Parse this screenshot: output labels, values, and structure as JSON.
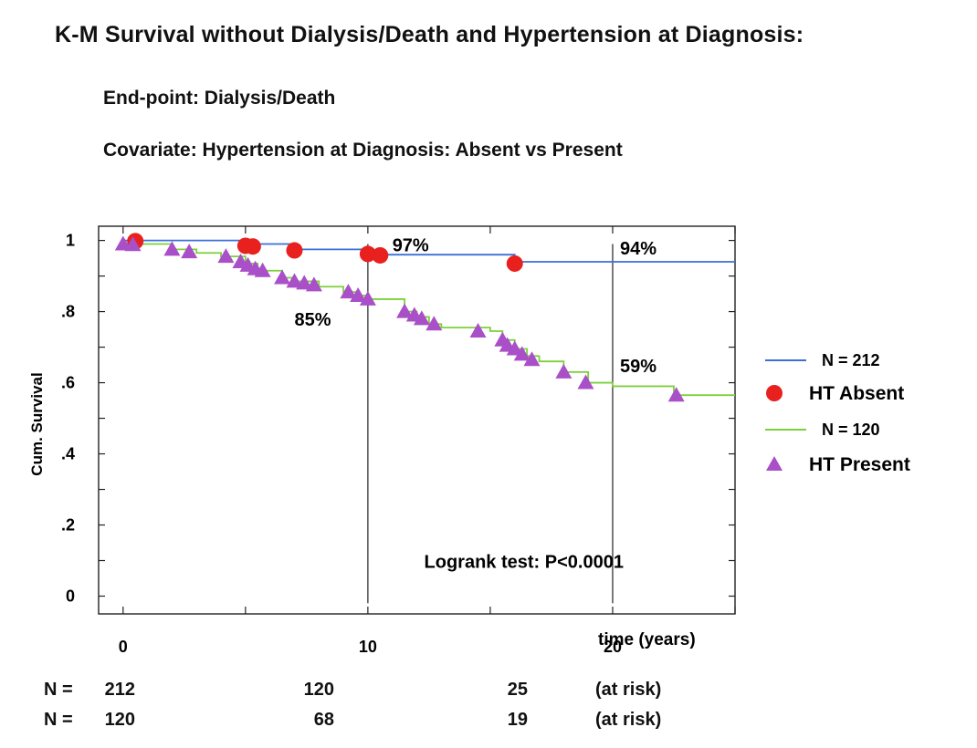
{
  "header": {
    "title": "K-M Survival without Dialysis/Death and Hypertension at Diagnosis:",
    "endpoint": "End-point: Dialysis/Death",
    "covariate": "Covariate: Hypertension at Diagnosis: Absent vs Present"
  },
  "chart_data": {
    "type": "line",
    "ylabel": "Cum. Survival",
    "xlabel": "time (years)",
    "xlim": [
      -1,
      25
    ],
    "ylim": [
      -0.05,
      1.04
    ],
    "x_ticks": [
      "0",
      "10",
      "20"
    ],
    "y_ticks": [
      "1",
      ".8",
      ".6",
      ".4",
      ".2",
      "0"
    ],
    "y_tick_values": [
      1,
      0.8,
      0.6,
      0.4,
      0.2,
      0
    ],
    "x_tick_values": [
      0,
      10,
      20
    ],
    "reference_lines_x": [
      10,
      20
    ],
    "series": [
      {
        "name": "N = 212",
        "marker_label": "HT Absent",
        "line_color": "#3b6fd8",
        "marker_color": "#e8201e",
        "marker": "circle",
        "steps": [
          [
            0,
            1.0
          ],
          [
            5,
            0.99
          ],
          [
            6.8,
            0.975
          ],
          [
            10,
            0.965
          ],
          [
            10.5,
            0.96
          ],
          [
            16,
            0.945
          ],
          [
            16.1,
            0.94
          ],
          [
            25,
            0.94
          ]
        ],
        "censored": [
          [
            0.5,
            0.998
          ],
          [
            5.0,
            0.985
          ],
          [
            5.3,
            0.983
          ],
          [
            7.0,
            0.972
          ],
          [
            10.0,
            0.962
          ],
          [
            10.5,
            0.958
          ],
          [
            16.0,
            0.935
          ]
        ]
      },
      {
        "name": "N = 120",
        "marker_label": "HT Present",
        "line_color": "#7cd03c",
        "marker_color": "#a94fc8",
        "marker": "triangle",
        "steps": [
          [
            0,
            0.99
          ],
          [
            2,
            0.975
          ],
          [
            3,
            0.965
          ],
          [
            4,
            0.955
          ],
          [
            5,
            0.935
          ],
          [
            5.5,
            0.915
          ],
          [
            6.5,
            0.895
          ],
          [
            7,
            0.885
          ],
          [
            8,
            0.87
          ],
          [
            9,
            0.855
          ],
          [
            9.5,
            0.845
          ],
          [
            10,
            0.835
          ],
          [
            11.5,
            0.8
          ],
          [
            12,
            0.785
          ],
          [
            12.5,
            0.765
          ],
          [
            13,
            0.755
          ],
          [
            15,
            0.745
          ],
          [
            15.5,
            0.72
          ],
          [
            16,
            0.695
          ],
          [
            16.5,
            0.675
          ],
          [
            17,
            0.66
          ],
          [
            18,
            0.63
          ],
          [
            19,
            0.6
          ],
          [
            20,
            0.59
          ],
          [
            22,
            0.59
          ],
          [
            22.5,
            0.565
          ],
          [
            25,
            0.565
          ]
        ],
        "censored": [
          [
            0,
            0.99
          ],
          [
            0.4,
            0.988
          ],
          [
            2,
            0.975
          ],
          [
            2.7,
            0.968
          ],
          [
            4.2,
            0.955
          ],
          [
            4.8,
            0.94
          ],
          [
            5.1,
            0.93
          ],
          [
            5.4,
            0.92
          ],
          [
            5.7,
            0.915
          ],
          [
            6.5,
            0.895
          ],
          [
            7.0,
            0.885
          ],
          [
            7.4,
            0.88
          ],
          [
            7.8,
            0.875
          ],
          [
            9.2,
            0.855
          ],
          [
            9.6,
            0.845
          ],
          [
            10.0,
            0.835
          ],
          [
            11.5,
            0.8
          ],
          [
            11.9,
            0.79
          ],
          [
            12.2,
            0.78
          ],
          [
            12.7,
            0.765
          ],
          [
            14.5,
            0.745
          ],
          [
            15.5,
            0.72
          ],
          [
            15.7,
            0.705
          ],
          [
            16.0,
            0.695
          ],
          [
            16.3,
            0.68
          ],
          [
            16.7,
            0.665
          ],
          [
            18.0,
            0.63
          ],
          [
            18.9,
            0.6
          ],
          [
            22.6,
            0.565
          ]
        ]
      }
    ],
    "annotations": [
      {
        "text": "97%",
        "x": 11.0,
        "y": 0.97
      },
      {
        "text": "94%",
        "x": 20.3,
        "y": 0.96
      },
      {
        "text": "85%",
        "x": 7.0,
        "y": 0.76
      },
      {
        "text": "59%",
        "x": 20.3,
        "y": 0.63
      },
      {
        "text": "Logrank test: P<0.0001",
        "x": 12.3,
        "y": 0.08
      }
    ],
    "at_risk": {
      "rows": [
        {
          "label": "N =",
          "n": "212",
          "values": [
            "120",
            "25"
          ],
          "suffix": "(at risk)"
        },
        {
          "label": "N =",
          "n": "120",
          "values": [
            "68",
            "19"
          ],
          "suffix": "(at risk)"
        }
      ]
    }
  }
}
